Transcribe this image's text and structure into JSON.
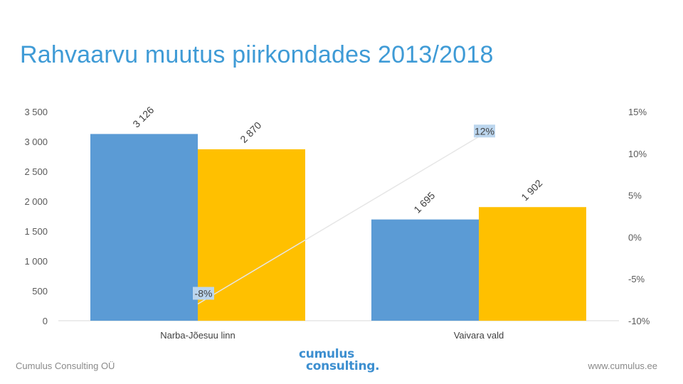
{
  "slide": {
    "title": "Rahvaarvu muutus piirkondades 2013/2018"
  },
  "footer": {
    "company": "Cumulus Consulting OÜ",
    "website": "www.cumulus.ee",
    "logo_line1": "cumulus",
    "logo_line2": "consulting",
    "logo_dot": "."
  },
  "colors": {
    "series_2013": "#5b9bd5",
    "series_2018": "#ffc000",
    "title": "#3f9bd6",
    "change_line": "#e6e6e6",
    "change_label_bg": "#bcd6ee"
  },
  "chart_data": {
    "type": "bar",
    "categories": [
      "Narba-Jõesuu linn",
      "Vaivara vald"
    ],
    "series": [
      {
        "values": [
          3126,
          1695
        ],
        "labels": [
          "3 126",
          "1 695"
        ]
      },
      {
        "values": [
          2870,
          1902
        ],
        "labels": [
          "2 870",
          "1 902"
        ]
      }
    ],
    "secondary_line": {
      "type": "line",
      "values": [
        -8,
        12
      ],
      "labels": [
        "-8%",
        "12%"
      ]
    },
    "ylim": [
      0,
      3500
    ],
    "y_ticks": [
      0,
      500,
      1000,
      1500,
      2000,
      2500,
      3000,
      3500
    ],
    "y_tick_labels": [
      "0",
      "500",
      "1 000",
      "1 500",
      "2 000",
      "2 500",
      "3 000",
      "3 500"
    ],
    "y2lim": [
      -10,
      15
    ],
    "y2_ticks": [
      -10,
      -5,
      0,
      5,
      10,
      15
    ],
    "y2_tick_labels": [
      "-10%",
      "-5%",
      "0%",
      "5%",
      "10%",
      "15%"
    ],
    "grid": false,
    "legend": "none"
  }
}
